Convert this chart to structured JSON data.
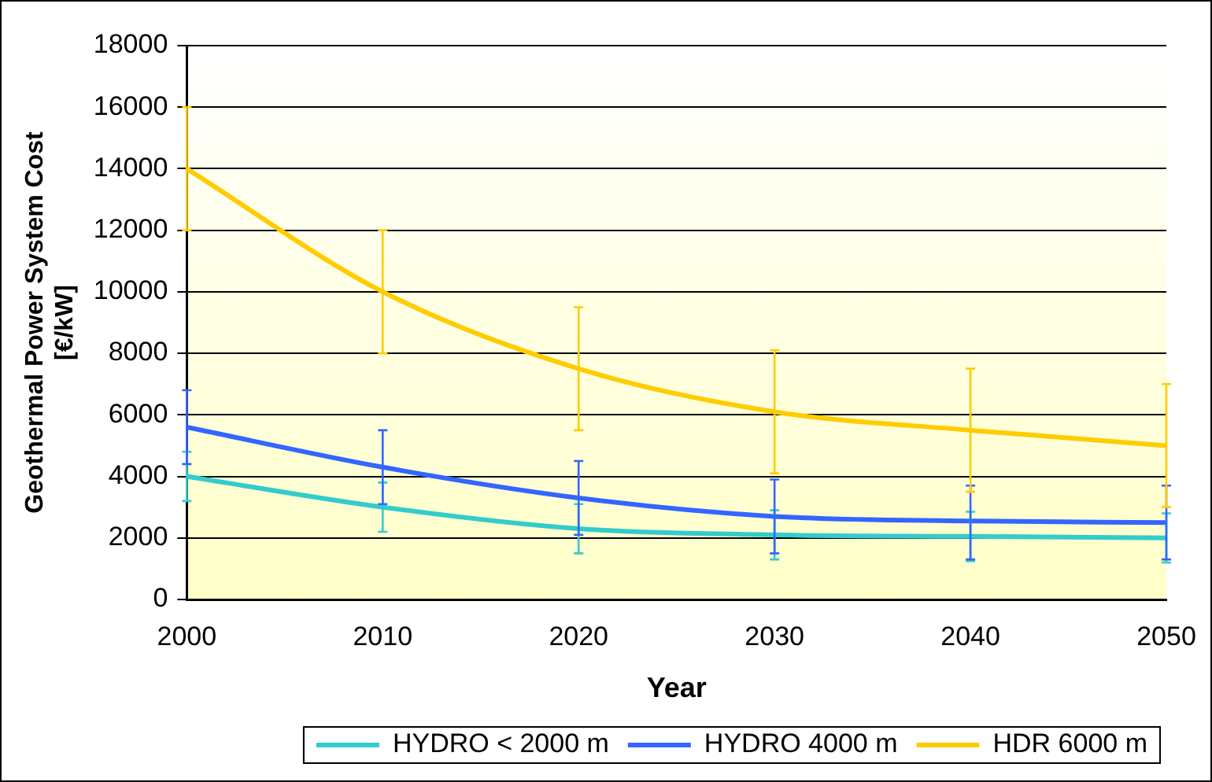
{
  "chart_data": {
    "type": "line",
    "xlabel": "Year",
    "ylabel": "Geothermal Power System Cost\n[€/kW]",
    "x": [
      2000,
      2010,
      2020,
      2030,
      2040,
      2050
    ],
    "xlim": [
      2000,
      2050
    ],
    "xticks": [
      2000,
      2010,
      2020,
      2030,
      2040,
      2050
    ],
    "ylim": [
      0,
      18000
    ],
    "yticks": [
      0,
      2000,
      4000,
      6000,
      8000,
      10000,
      12000,
      14000,
      16000,
      18000
    ],
    "grid": "y",
    "legend": "bottom",
    "marker": "none",
    "line_style": "solid",
    "series": [
      {
        "name": "HYDRO < 2000 m",
        "color": "#33cccc",
        "values": [
          4000,
          3000,
          2300,
          2100,
          2050,
          2000
        ],
        "errors": [
          [
            3200,
            4800
          ],
          [
            2200,
            3800
          ],
          [
            1500,
            3100
          ],
          [
            1300,
            2900
          ],
          [
            1250,
            2850
          ],
          [
            1200,
            2800
          ]
        ]
      },
      {
        "name": "HYDRO 4000 m",
        "color": "#3366ff",
        "values": [
          5600,
          4300,
          3300,
          2700,
          2550,
          2500
        ],
        "errors": [
          [
            4400,
            6800
          ],
          [
            3100,
            5500
          ],
          [
            2100,
            4500
          ],
          [
            1500,
            3900
          ],
          [
            1300,
            3700
          ],
          [
            1300,
            3700
          ]
        ]
      },
      {
        "name": "HDR 6000 m",
        "color": "#ffcc00",
        "values": [
          14000,
          10000,
          7500,
          6100,
          5500,
          5000
        ],
        "errors": [
          [
            12000,
            16000
          ],
          [
            8000,
            12000
          ],
          [
            5500,
            9500
          ],
          [
            4100,
            8100
          ],
          [
            3500,
            7500
          ],
          [
            3000,
            7000
          ]
        ]
      }
    ]
  }
}
